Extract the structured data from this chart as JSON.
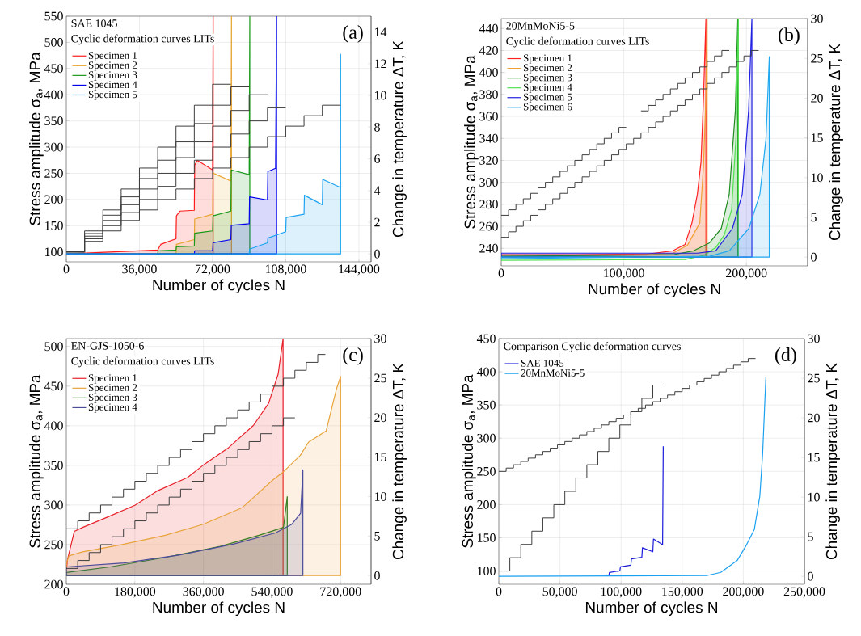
{
  "chart_data": [
    {
      "type": "area",
      "title": "SAE 1045",
      "subtitle": "Cyclic deformation curves LITs",
      "xlabel": "Number of cycles N",
      "ylabel": "Stress amplitude σ$_{a}$, MPa",
      "y2label": "Change in temperature ΔT, K",
      "annotations": [
        "(a)"
      ],
      "xlim": [
        0,
        150000
      ],
      "xticks": [
        0,
        {
          "value": 36000,
          "label": "36,000"
        },
        {
          "value": 72000,
          "label": "72,000"
        },
        {
          "value": 108000,
          "label": "108,000"
        },
        {
          "value": 144000,
          "label": "144,000"
        }
      ],
      "ylim": [
        81,
        550
      ],
      "yticks": [
        100,
        150,
        200,
        250,
        300,
        350,
        400,
        450,
        500,
        550
      ],
      "y2lim": [
        -0.5,
        15
      ],
      "y2ticks": [
        0,
        2,
        4,
        6,
        8,
        10,
        12,
        14
      ],
      "grid": true,
      "legend": "top left",
      "series": [
        {
          "type": "step",
          "axis": "y",
          "color": "#3c3c3c",
          "x": [
            0,
            9000,
            18000,
            27000,
            36000,
            45000,
            54000,
            63000,
            72000,
            81000
          ],
          "values": [
            100,
            140,
            180,
            220,
            260,
            300,
            340,
            380,
            420,
            420
          ]
        },
        {
          "type": "step",
          "axis": "y",
          "color": "#3c3c3c",
          "x": [
            0,
            9000,
            18000,
            27000,
            36000,
            45000,
            54000,
            63000,
            72000,
            81000,
            90000
          ],
          "values": [
            100,
            135,
            170,
            205,
            240,
            275,
            310,
            345,
            380,
            415,
            415
          ]
        },
        {
          "type": "step",
          "axis": "y",
          "color": "#3c3c3c",
          "x": [
            0,
            9000,
            18000,
            27000,
            36000,
            45000,
            54000,
            63000,
            72000,
            81000,
            90000,
            99000
          ],
          "values": [
            100,
            130,
            160,
            190,
            220,
            250,
            280,
            310,
            340,
            370,
            400,
            400
          ]
        },
        {
          "type": "step",
          "axis": "y",
          "color": "#3c3c3c",
          "x": [
            0,
            9000,
            18000,
            27000,
            36000,
            45000,
            54000,
            63000,
            72000,
            81000,
            90000,
            99000,
            108000
          ],
          "values": [
            100,
            125,
            150,
            175,
            200,
            225,
            250,
            275,
            300,
            325,
            350,
            375,
            375
          ]
        },
        {
          "type": "step",
          "axis": "y",
          "color": "#3c3c3c",
          "x": [
            0,
            9000,
            18000,
            27000,
            36000,
            45000,
            54000,
            63000,
            72000,
            81000,
            90000,
            99000,
            108000,
            117000,
            126000,
            135000
          ],
          "values": [
            100,
            120,
            140,
            160,
            180,
            200,
            220,
            240,
            260,
            280,
            300,
            320,
            340,
            360,
            380,
            380
          ]
        },
        {
          "type": "area",
          "axis": "y2",
          "name": "Specimen 1",
          "color": "#ff1a1a",
          "x": [
            0,
            45000,
            46500,
            54000,
            54200,
            56000,
            63000,
            63200,
            64500,
            72000,
            72300
          ],
          "values": [
            0,
            0.25,
            0.6,
            0.95,
            2.4,
            2.7,
            2.75,
            5.6,
            5.9,
            5.3,
            15
          ]
        },
        {
          "type": "area",
          "axis": "y2",
          "name": "Specimen 2",
          "color": "#e8a530",
          "x": [
            0,
            54000,
            54200,
            63000,
            63200,
            72000,
            72200,
            81000,
            81300
          ],
          "values": [
            0,
            0,
            0.6,
            0.9,
            2.2,
            2.5,
            5.1,
            4.6,
            15
          ]
        },
        {
          "type": "area",
          "axis": "y2",
          "name": "Specimen 3",
          "color": "#1a9a1a",
          "x": [
            0,
            45000,
            45200,
            54000,
            54200,
            63000,
            63200,
            72000,
            72200,
            81000,
            81200,
            90000,
            90300
          ],
          "values": [
            0,
            0,
            0.2,
            0.25,
            0.45,
            0.5,
            1.3,
            1.45,
            2.4,
            2.7,
            5.3,
            5.0,
            15
          ]
        },
        {
          "type": "area",
          "axis": "y2",
          "name": "Specimen 4",
          "color": "#0000ee",
          "x": [
            0,
            63000,
            63200,
            72000,
            72200,
            81000,
            81200,
            90000,
            90200,
            99000,
            99200,
            103000,
            103500
          ],
          "values": [
            0,
            0,
            0.2,
            0.2,
            0.7,
            0.9,
            1.8,
            1.9,
            3.6,
            3.4,
            5.2,
            5.4,
            15
          ]
        },
        {
          "type": "area",
          "axis": "y2",
          "name": "Specimen 5",
          "color": "#1aa3f0",
          "x": [
            0,
            90000,
            90200,
            99000,
            99200,
            108000,
            108200,
            117000,
            117200,
            126000,
            126200,
            134700,
            135000
          ],
          "values": [
            0,
            0,
            0.3,
            0.7,
            1.0,
            1.4,
            2.3,
            2.5,
            3.7,
            3.1,
            4.7,
            4.2,
            12.6
          ]
        }
      ]
    },
    {
      "type": "area",
      "title": "20MnMoNi5-5",
      "subtitle": "Cyclic deformation curves LITs",
      "xlabel": "Number of cycles N",
      "ylabel": "Stress amplitude σ$_{a}$, MPa",
      "y2label": "Change in temperature ΔT, K",
      "annotations": [
        "(b)"
      ],
      "xlim": [
        0,
        250000
      ],
      "xticks": [
        0,
        {
          "value": 100000,
          "label": "100,000"
        },
        {
          "value": 200000,
          "label": "200,000"
        }
      ],
      "ylim": [
        224,
        449
      ],
      "yticks": [
        240,
        260,
        280,
        300,
        320,
        340,
        360,
        380,
        400,
        420,
        440
      ],
      "y2lim": [
        -1.1,
        30
      ],
      "y2ticks": [
        0,
        5,
        10,
        15,
        20,
        25,
        30
      ],
      "grid": true,
      "legend": "top left",
      "series": [
        {
          "type": "step",
          "axis": "y",
          "color": "#3c3c3c",
          "x": [
            0,
            6000,
            12000,
            18000,
            24000,
            30000,
            36000,
            42000,
            48000,
            54000,
            60000,
            66000,
            72000,
            78000,
            84000,
            90000,
            96000,
            102000,
            108000,
            114000,
            120000,
            126000,
            132000,
            138000,
            144000,
            150000,
            156000,
            162000,
            168000,
            174000,
            180000,
            186000
          ],
          "values": [
            270,
            275,
            280,
            285,
            290,
            295,
            300,
            305,
            310,
            315,
            320,
            325,
            330,
            335,
            340,
            345,
            350,
            350,
            null,
            365,
            370,
            375,
            380,
            385,
            390,
            395,
            400,
            405,
            410,
            415,
            420,
            420
          ]
        },
        {
          "type": "step",
          "axis": "y",
          "color": "#3c3c3c",
          "x": [
            0,
            6000,
            12000,
            18000,
            24000,
            30000,
            36000,
            42000,
            48000,
            54000,
            60000,
            66000,
            72000,
            78000,
            84000,
            90000,
            96000,
            102000,
            108000,
            114000,
            120000,
            126000,
            132000,
            138000,
            144000,
            150000,
            156000,
            162000,
            168000,
            174000,
            180000,
            186000,
            192000,
            198000,
            204000,
            210000
          ],
          "values": [
            250,
            255,
            260,
            265,
            270,
            275,
            280,
            285,
            290,
            295,
            300,
            305,
            310,
            315,
            320,
            325,
            330,
            335,
            340,
            345,
            350,
            355,
            360,
            365,
            370,
            375,
            380,
            385,
            390,
            395,
            400,
            405,
            410,
            415,
            420,
            420
          ]
        },
        {
          "type": "area",
          "axis": "y2",
          "name": "Specimen 1",
          "color": "#ff2020",
          "x": [
            0,
            60000,
            120000,
            140000,
            150000,
            155600,
            160000,
            163000,
            165000,
            167000
          ],
          "values": [
            0.3,
            0.3,
            0.4,
            0.8,
            1.6,
            4.3,
            7.9,
            12,
            20,
            30
          ]
        },
        {
          "type": "area",
          "axis": "y2",
          "name": "Specimen 2",
          "color": "#f0a030",
          "x": [
            0,
            120000,
            140000,
            152000,
            162000,
            165000,
            167000,
            168000
          ],
          "values": [
            0.2,
            0.3,
            0.5,
            1.5,
            4.3,
            11.5,
            20,
            30
          ]
        },
        {
          "type": "area",
          "axis": "y2",
          "name": "Specimen 3",
          "color": "#1e8c1e",
          "x": [
            0,
            140000,
            157000,
            170000,
            179500,
            186000,
            191000,
            193000
          ],
          "values": [
            0.1,
            0.3,
            0.8,
            1.8,
            3.6,
            7.9,
            18.4,
            30
          ]
        },
        {
          "type": "area",
          "axis": "y2",
          "name": "Specimen 4",
          "color": "#50e050",
          "x": [
            0,
            150000,
            165000,
            175000,
            182000,
            188000,
            191500,
            193500
          ],
          "values": [
            -0.4,
            -0.3,
            0.2,
            1.2,
            2.8,
            6,
            15,
            30
          ]
        },
        {
          "type": "area",
          "axis": "y2",
          "name": "Specimen 5",
          "color": "#2020e0",
          "x": [
            0,
            120000,
            160000,
            175000,
            188600,
            196600,
            201800,
            204500
          ],
          "values": [
            0.5,
            0.5,
            0.5,
            0.8,
            3.6,
            7.9,
            18.4,
            30
          ]
        },
        {
          "type": "area",
          "axis": "y2",
          "name": "Specimen 6",
          "color": "#20a8f0",
          "x": [
            0,
            170000,
            186000,
            202000,
            211000,
            216000,
            218700
          ],
          "values": [
            -0.2,
            0.1,
            0.8,
            3.6,
            7.9,
            14.9,
            25.2
          ]
        }
      ]
    },
    {
      "type": "area",
      "title": "EN-GJS-1050-6",
      "subtitle": "Cyclic deformation curves LITs",
      "xlabel": "Number of cycles N",
      "ylabel": "Stress amplitude σ$_{a}$, MPa",
      "y2label": "Change in temperature ΔT, K",
      "annotations": [
        "(c)"
      ],
      "xlim": [
        0,
        800000
      ],
      "xticks": [
        0,
        {
          "value": 180000,
          "label": "180,000"
        },
        {
          "value": 360000,
          "label": "360,000"
        },
        {
          "value": 540000,
          "label": "540,000"
        },
        {
          "value": 720000,
          "label": "720,000"
        }
      ],
      "ylim": [
        200,
        510
      ],
      "yticks": [
        200,
        250,
        300,
        350,
        400,
        450,
        500
      ],
      "y2lim": [
        -1.1,
        30
      ],
      "y2ticks": [
        0,
        5,
        10,
        15,
        20,
        25,
        30
      ],
      "grid": true,
      "legend": "top left",
      "series": [
        {
          "type": "step",
          "axis": "y",
          "color": "#3c3c3c",
          "x": [
            0,
            30000,
            60000,
            90000,
            120000,
            150000,
            180000,
            210000,
            240000,
            270000,
            300000,
            330000,
            360000,
            390000,
            420000,
            450000,
            480000,
            510000,
            540000,
            570000,
            600000,
            630000,
            660000,
            680000
          ],
          "values": [
            270,
            280,
            290,
            300,
            310,
            320,
            330,
            340,
            350,
            360,
            370,
            380,
            390,
            400,
            410,
            420,
            430,
            440,
            450,
            460,
            470,
            480,
            490,
            490
          ]
        },
        {
          "type": "step",
          "axis": "y",
          "color": "#3c3c3c",
          "x": [
            0,
            30000,
            60000,
            90000,
            120000,
            150000,
            180000,
            210000,
            240000,
            270000,
            300000,
            330000,
            360000,
            390000,
            420000,
            450000,
            480000,
            510000,
            540000,
            570000,
            600000
          ],
          "values": [
            220,
            230,
            240,
            250,
            260,
            270,
            280,
            290,
            300,
            310,
            320,
            330,
            340,
            350,
            360,
            370,
            380,
            390,
            400,
            410,
            410
          ]
        },
        {
          "type": "area",
          "axis": "y2",
          "name": "Specimen 1",
          "color": "#e8202a",
          "x": [
            0,
            3000,
            21000,
            43000,
            108000,
            180000,
            238000,
            318000,
            360000,
            426000,
            491000,
            531000,
            556000,
            569000
          ],
          "values": [
            0.5,
            2,
            5.6,
            6.1,
            7.4,
            8.9,
            10.7,
            12.4,
            14,
            16.2,
            19,
            21.8,
            25.5,
            30
          ]
        },
        {
          "type": "area",
          "axis": "y2",
          "name": "Specimen 2",
          "color": "#e8a33a",
          "x": [
            0,
            7000,
            43000,
            144000,
            260000,
            360000,
            462000,
            542000,
            569000,
            614000,
            636000,
            682000,
            709000,
            720000
          ],
          "values": [
            1.5,
            2.5,
            3,
            3.9,
            5.1,
            6.5,
            8.6,
            12.1,
            13.1,
            15.2,
            16.9,
            18.3,
            23.6,
            25.2
          ]
        },
        {
          "type": "area",
          "axis": "y2",
          "name": "Specimen 3",
          "color": "#3a7d22",
          "x": [
            0,
            115000,
            260000,
            404000,
            506000,
            570000,
            580000
          ],
          "values": [
            0.4,
            1.1,
            2.3,
            3.7,
            5.1,
            6.1,
            10
          ]
        },
        {
          "type": "area",
          "axis": "y2",
          "name": "Specimen 4",
          "color": "#4b4b9b",
          "x": [
            0,
            151000,
            296000,
            440000,
            549000,
            592000,
            615000,
            621000
          ],
          "values": [
            1.1,
            1.6,
            2.6,
            4,
            5.4,
            6.5,
            7.9,
            13.4
          ]
        }
      ]
    },
    {
      "type": "line",
      "title": "Comparison Cyclic deformation curves",
      "xlabel": "Number of cycles N",
      "ylabel": "Stress amplitude σ$_{a}$, MPa",
      "y2label": "Change in temperature ΔT, K",
      "annotations": [
        "(d)"
      ],
      "xlim": [
        0,
        250000
      ],
      "xticks": [
        0,
        {
          "value": 50000,
          "label": "50,000"
        },
        {
          "value": 100000,
          "label": "100,000"
        },
        {
          "value": 150000,
          "label": "150,000"
        },
        {
          "value": 200000,
          "label": "200,000"
        },
        {
          "value": 250000,
          "label": "250,000"
        }
      ],
      "ylim": [
        80,
        450
      ],
      "yticks": [
        100,
        150,
        200,
        250,
        300,
        350,
        400,
        450
      ],
      "y2lim": [
        -1,
        30
      ],
      "y2ticks": [
        0,
        5,
        10,
        15,
        20,
        25,
        30
      ],
      "grid": true,
      "legend": "top left",
      "series": [
        {
          "type": "step",
          "axis": "y",
          "color": "#3c3c3c",
          "x": [
            0,
            6000,
            12000,
            18000,
            24000,
            30000,
            36000,
            42000,
            48000,
            54000,
            60000,
            66000,
            72000,
            78000,
            84000,
            90000,
            96000,
            102000,
            108000,
            114000,
            120000,
            126000,
            132000,
            138000,
            144000,
            150000,
            156000,
            162000,
            168000,
            174000,
            180000,
            186000,
            192000,
            198000,
            204000,
            210000
          ],
          "values": [
            250,
            255,
            260,
            265,
            270,
            275,
            280,
            285,
            290,
            295,
            300,
            305,
            310,
            315,
            320,
            325,
            330,
            335,
            340,
            345,
            350,
            355,
            360,
            365,
            370,
            375,
            380,
            385,
            390,
            395,
            400,
            405,
            410,
            415,
            420,
            420
          ]
        },
        {
          "type": "step",
          "axis": "y",
          "color": "#3c3c3c",
          "x": [
            0,
            9000,
            18000,
            27000,
            36000,
            45000,
            54000,
            63000,
            72000,
            81000,
            90000,
            99000,
            108000,
            117000,
            126000,
            135000
          ],
          "values": [
            100,
            120,
            140,
            160,
            180,
            200,
            220,
            240,
            260,
            280,
            300,
            320,
            340,
            360,
            380,
            380
          ]
        },
        {
          "axis": "y2",
          "name": "SAE 1045",
          "color": "#1a1adb",
          "x": [
            88000,
            90000,
            90500,
            99000,
            99500,
            108000,
            108500,
            117000,
            117500,
            126000,
            126500,
            134000,
            134500
          ],
          "values": [
            0.1,
            0.1,
            0.5,
            0.7,
            1.2,
            1.4,
            2.2,
            2.4,
            3.6,
            3.1,
            4.7,
            4.0,
            16.4
          ]
        },
        {
          "axis": "y2",
          "name": "20MnMoNi5-5",
          "color": "#1aa0f0",
          "x": [
            0,
            170000,
            181600,
            195000,
            202000,
            209000,
            213500,
            215800,
            218500
          ],
          "values": [
            0,
            0.1,
            0.5,
            2,
            3.8,
            5.9,
            10.1,
            15.4,
            25.2
          ]
        }
      ]
    }
  ]
}
